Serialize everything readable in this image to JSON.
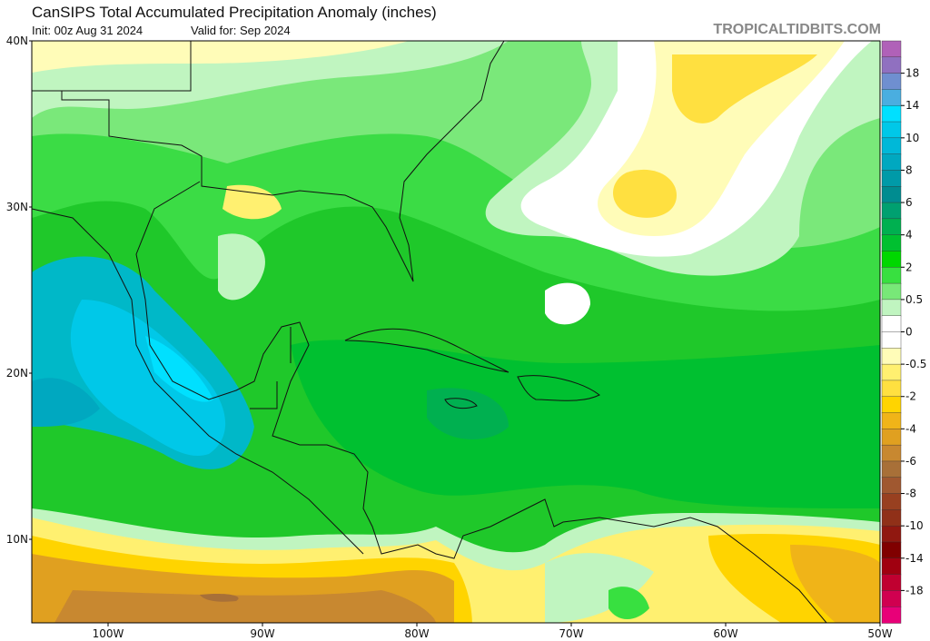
{
  "header": {
    "title": "CanSIPS Total Accumulated Precipitation Anomaly (inches)",
    "init": "Init: 00z Aug 31 2024",
    "valid": "Valid for: Sep 2024",
    "brand": "TROPICALTIDBITS.COM"
  },
  "map": {
    "lat_labels": [
      "40N",
      "30N",
      "20N",
      "10N"
    ],
    "lon_labels": [
      "100W",
      "90W",
      "80W",
      "70W",
      "60W",
      "50W"
    ],
    "extent": {
      "lon_min": -105,
      "lon_max": -50,
      "lat_min": 5,
      "lat_max": 40
    }
  },
  "colorbar": {
    "labels": [
      "18",
      "14",
      "10",
      "8",
      "6",
      "4",
      "2",
      "0.5",
      "0",
      "-0.5",
      "-2",
      "-4",
      "-6",
      "-8",
      "-10",
      "-14",
      "-18"
    ],
    "colors": [
      "#b061b8",
      "#9070c0",
      "#6f8fd0",
      "#4aaee0",
      "#00e0ff",
      "#00c8e8",
      "#00b8d8",
      "#00a8c0",
      "#009aa8",
      "#008c90",
      "#00a070",
      "#00b050",
      "#00c030",
      "#00d800",
      "#38e040",
      "#78e878",
      "#c0f5c0",
      "#ffffff",
      "#ffffff",
      "#fffcb8",
      "#fff070",
      "#ffe040",
      "#ffd400",
      "#f0b418",
      "#e0a020",
      "#c88830",
      "#a87038",
      "#a05830",
      "#984020",
      "#903018",
      "#901810",
      "#800000",
      "#a00010",
      "#c00030",
      "#d00050",
      "#e80078"
    ]
  }
}
